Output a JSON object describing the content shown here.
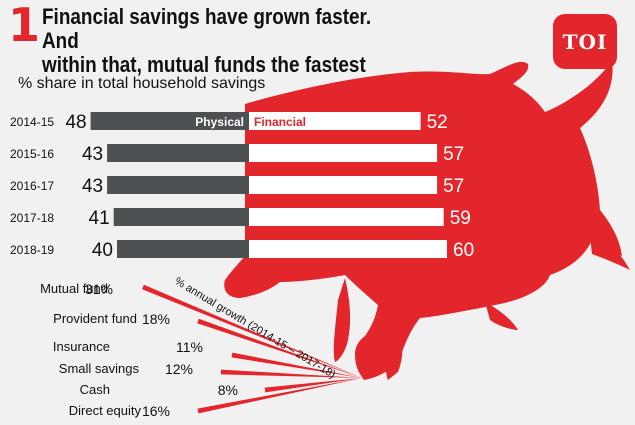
{
  "header": {
    "number": "1",
    "title_line1": "Financial savings have grown faster. And",
    "title_line2": "within that, mutual funds the fastest",
    "subtitle": "% share in total household savings",
    "logo": "TOI"
  },
  "colors": {
    "physical": "#4d5154",
    "financial": "#ffffff",
    "accent": "#e3262b",
    "background": "#f1f1f1"
  },
  "chart_data": [
    {
      "type": "bar",
      "categories": [
        "2014-15",
        "2015-16",
        "2016-17",
        "2017-18",
        "2018-19"
      ],
      "series": [
        {
          "name": "Physical",
          "values": [
            48,
            43,
            43,
            41,
            40
          ]
        },
        {
          "name": "Financial",
          "values": [
            52,
            57,
            57,
            59,
            60
          ]
        }
      ],
      "title": "% share in total household savings"
    },
    {
      "type": "bar",
      "title": "% annual growth (2014-15 – 2017-18)",
      "categories": [
        "Mutual fund",
        "Provident fund",
        "Insurance",
        "Small savings",
        "Cash",
        "Direct equity"
      ],
      "values": [
        31,
        18,
        11,
        12,
        8,
        16
      ],
      "value_labels": [
        "31%",
        "18%",
        "11%",
        "12%",
        "8%",
        "16%"
      ]
    }
  ]
}
